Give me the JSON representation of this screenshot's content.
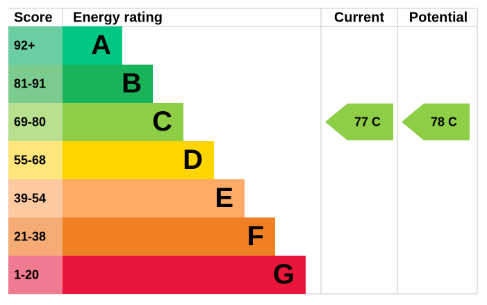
{
  "header": {
    "score": "Score",
    "rating": "Energy rating",
    "current": "Current",
    "potential": "Potential"
  },
  "bands": [
    {
      "range": "92+",
      "letter": "A",
      "color": "#00c781",
      "score_color": "#6ccfa3"
    },
    {
      "range": "81-91",
      "letter": "B",
      "color": "#19b459",
      "score_color": "#7ccc8f"
    },
    {
      "range": "69-80",
      "letter": "C",
      "color": "#8dce46",
      "score_color": "#b8e08e"
    },
    {
      "range": "55-68",
      "letter": "D",
      "color": "#ffd500",
      "score_color": "#ffe67a"
    },
    {
      "range": "39-54",
      "letter": "E",
      "color": "#fcaa65",
      "score_color": "#fdc9a0"
    },
    {
      "range": "21-38",
      "letter": "F",
      "color": "#ef8023",
      "score_color": "#f4ab74"
    },
    {
      "range": "1-20",
      "letter": "G",
      "color": "#e9153b",
      "score_color": "#f07a8f"
    }
  ],
  "current": {
    "score": 77,
    "rating": "C"
  },
  "potential": {
    "score": 78,
    "rating": "C"
  }
}
